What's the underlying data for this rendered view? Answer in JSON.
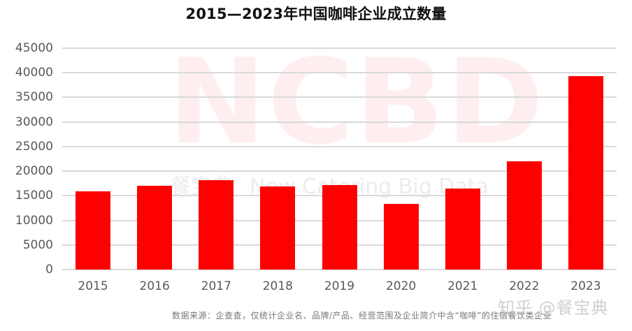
{
  "title": "2015—2023年中国咖啡企业成立数量",
  "watermarks": {
    "logo": "NCBD",
    "sub_cn": "餐宝典",
    "sub_en": "New Catering Big Data",
    "platform": "知乎 @餐宝典"
  },
  "footnote": "数据来源：企查查，仅统计企业名、品牌/产品、经营范围及企业简介中含“咖啡”的住宿餐饮类企业",
  "colors": {
    "bar": "#ff0000",
    "grid": "#d9d9d9",
    "axis_text": "#595959"
  },
  "chart_data": {
    "type": "bar",
    "title": "2015—2023年中国咖啡企业成立数量",
    "xlabel": "",
    "ylabel": "",
    "categories": [
      "2015",
      "2016",
      "2017",
      "2018",
      "2019",
      "2020",
      "2021",
      "2022",
      "2023"
    ],
    "values": [
      15900,
      17100,
      18100,
      16900,
      17200,
      13300,
      16500,
      22000,
      39300
    ],
    "ylim": [
      0,
      45000
    ],
    "yticks": [
      "0",
      "5000",
      "10000",
      "15000",
      "20000",
      "25000",
      "30000",
      "35000",
      "40000",
      "45000"
    ],
    "grid": true,
    "legend": null,
    "bar_color": "#ff0000"
  }
}
